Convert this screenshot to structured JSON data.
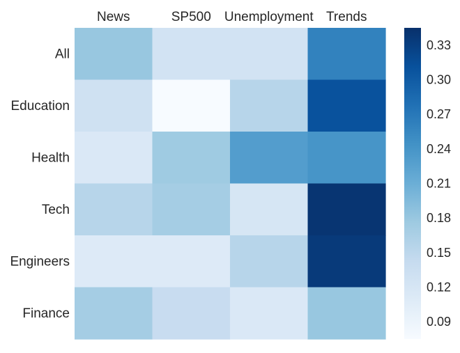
{
  "chart_data": {
    "type": "heatmap",
    "columns": [
      "News",
      "SP500",
      "Unemployment",
      "Trends"
    ],
    "rows": [
      "All",
      "Education",
      "Health",
      "Tech",
      "Engineers",
      "Finance"
    ],
    "values": [
      [
        0.18,
        0.125,
        0.125,
        0.26
      ],
      [
        0.13,
        0.075,
        0.155,
        0.31
      ],
      [
        0.115,
        0.175,
        0.23,
        0.24
      ],
      [
        0.155,
        0.17,
        0.12,
        0.34
      ],
      [
        0.11,
        0.11,
        0.155,
        0.335
      ],
      [
        0.17,
        0.14,
        0.115,
        0.18
      ]
    ],
    "colorbar": {
      "min": 0.075,
      "max": 0.345,
      "ticks": [
        0.09,
        0.12,
        0.15,
        0.18,
        0.21,
        0.24,
        0.27,
        0.3,
        0.33
      ],
      "tick_labels": [
        "0.09",
        "0.12",
        "0.15",
        "0.18",
        "0.21",
        "0.24",
        "0.27",
        "0.30",
        "0.33"
      ]
    },
    "colormap": "Blues",
    "colormap_stops": [
      "#f7fbff",
      "#deebf7",
      "#c6dbef",
      "#9ecae1",
      "#6baed6",
      "#4292c6",
      "#2171b5",
      "#08519c",
      "#08306b"
    ],
    "x_tick_position": "top",
    "grid": false,
    "title": "",
    "xlabel": "",
    "ylabel": ""
  }
}
